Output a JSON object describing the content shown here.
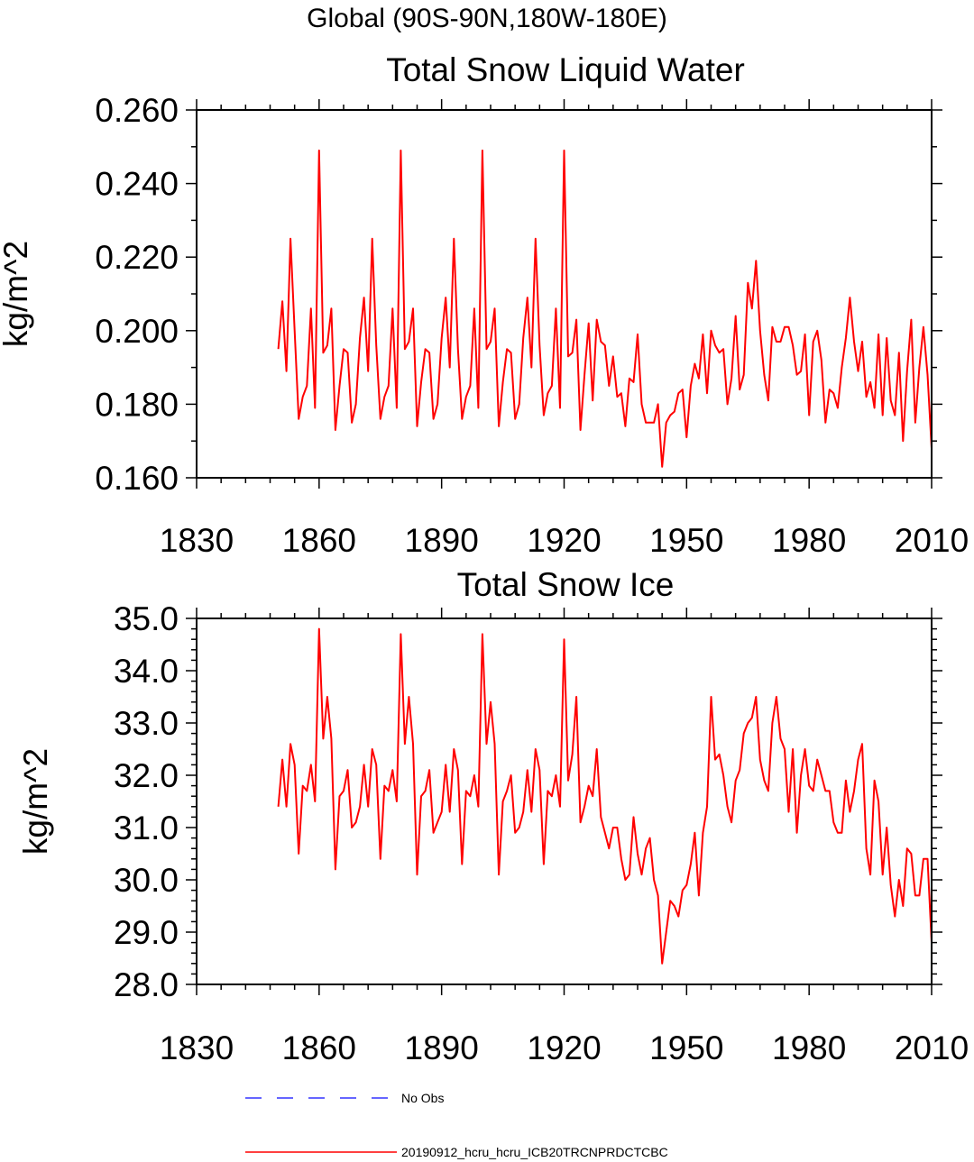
{
  "figure_title": "Global (90S-90N,180W-180E)",
  "legend": [
    {
      "label": "No Obs",
      "color": "#3333ff",
      "style": "dashed"
    },
    {
      "label": "20190912_hcru_hcru_ICB20TRCNPRDCTCBC",
      "color": "#ff0000",
      "style": "solid"
    }
  ],
  "chart_data": [
    {
      "type": "line",
      "title": "Total Snow Liquid Water",
      "xlabel": "",
      "ylabel": "kg/m^2",
      "xlim": [
        1830,
        2010
      ],
      "ylim": [
        0.16,
        0.26
      ],
      "xticks": [
        "1830",
        "1860",
        "1890",
        "1920",
        "1950",
        "1980",
        "2010"
      ],
      "yticks": [
        "0.160",
        "0.180",
        "0.200",
        "0.220",
        "0.240",
        "0.260"
      ],
      "series": [
        {
          "name": "20190912_hcru_hcru_ICB20TRCNPRDCTCBC",
          "color": "#ff0000",
          "x_start": 1850,
          "values": [
            0.195,
            0.208,
            0.189,
            0.225,
            0.2,
            0.176,
            0.182,
            0.185,
            0.206,
            0.179,
            0.249,
            0.194,
            0.196,
            0.206,
            0.173,
            0.185,
            0.195,
            0.194,
            0.175,
            0.18,
            0.198,
            0.209,
            0.189,
            0.225,
            0.196,
            0.176,
            0.182,
            0.185,
            0.206,
            0.179,
            0.249,
            0.195,
            0.197,
            0.206,
            0.174,
            0.186,
            0.195,
            0.194,
            0.176,
            0.18,
            0.198,
            0.209,
            0.19,
            0.225,
            0.195,
            0.176,
            0.182,
            0.185,
            0.206,
            0.179,
            0.249,
            0.195,
            0.197,
            0.206,
            0.174,
            0.186,
            0.195,
            0.194,
            0.176,
            0.18,
            0.198,
            0.209,
            0.19,
            0.225,
            0.196,
            0.177,
            0.183,
            0.185,
            0.206,
            0.179,
            0.249,
            0.193,
            0.194,
            0.203,
            0.173,
            0.188,
            0.202,
            0.181,
            0.203,
            0.197,
            0.196,
            0.185,
            0.193,
            0.182,
            0.183,
            0.174,
            0.187,
            0.186,
            0.199,
            0.18,
            0.175,
            0.175,
            0.175,
            0.18,
            0.163,
            0.175,
            0.177,
            0.178,
            0.183,
            0.184,
            0.171,
            0.185,
            0.191,
            0.187,
            0.199,
            0.183,
            0.2,
            0.196,
            0.194,
            0.195,
            0.18,
            0.187,
            0.204,
            0.184,
            0.188,
            0.213,
            0.206,
            0.219,
            0.2,
            0.188,
            0.181,
            0.201,
            0.197,
            0.197,
            0.201,
            0.201,
            0.196,
            0.188,
            0.189,
            0.199,
            0.177,
            0.197,
            0.2,
            0.192,
            0.175,
            0.184,
            0.183,
            0.179,
            0.19,
            0.198,
            0.209,
            0.197,
            0.189,
            0.197,
            0.182,
            0.186,
            0.179,
            0.199,
            0.177,
            0.198,
            0.181,
            0.177,
            0.194,
            0.17,
            0.189,
            0.203,
            0.175,
            0.19,
            0.201,
            0.188,
            0.168
          ]
        }
      ]
    },
    {
      "type": "line",
      "title": "Total Snow Ice",
      "xlabel": "",
      "ylabel": "kg/m^2",
      "xlim": [
        1830,
        2010
      ],
      "ylim": [
        28.0,
        35.0
      ],
      "xticks": [
        "1830",
        "1860",
        "1890",
        "1920",
        "1950",
        "1980",
        "2010"
      ],
      "yticks": [
        "28.0",
        "29.0",
        "30.0",
        "31.0",
        "32.0",
        "33.0",
        "34.0",
        "35.0"
      ],
      "series": [
        {
          "name": "20190912_hcru_hcru_ICB20TRCNPRDCTCBC",
          "color": "#ff0000",
          "x_start": 1850,
          "values": [
            31.4,
            32.3,
            31.4,
            32.6,
            32.2,
            30.5,
            31.8,
            31.7,
            32.2,
            31.5,
            34.8,
            32.7,
            33.5,
            32.7,
            30.2,
            31.6,
            31.7,
            32.1,
            31.0,
            31.1,
            31.4,
            32.2,
            31.4,
            32.5,
            32.2,
            30.4,
            31.8,
            31.7,
            32.1,
            31.5,
            34.7,
            32.6,
            33.5,
            32.6,
            30.1,
            31.6,
            31.7,
            32.1,
            30.9,
            31.1,
            31.3,
            32.2,
            31.3,
            32.5,
            32.1,
            30.3,
            31.7,
            31.6,
            32.0,
            31.4,
            34.7,
            32.6,
            33.4,
            32.6,
            30.1,
            31.5,
            31.7,
            32.0,
            30.9,
            31.0,
            31.3,
            32.1,
            31.3,
            32.5,
            32.1,
            30.3,
            31.7,
            31.6,
            32.0,
            31.4,
            34.6,
            31.9,
            32.4,
            33.5,
            31.1,
            31.4,
            31.8,
            31.6,
            32.5,
            31.2,
            30.9,
            30.6,
            31.0,
            31.0,
            30.4,
            30.0,
            30.1,
            31.2,
            30.5,
            30.1,
            30.6,
            30.8,
            30.0,
            29.7,
            28.4,
            29.0,
            29.6,
            29.5,
            29.3,
            29.8,
            29.9,
            30.3,
            30.9,
            29.7,
            30.9,
            31.4,
            33.5,
            32.3,
            32.4,
            32.0,
            31.4,
            31.1,
            31.9,
            32.1,
            32.8,
            33.0,
            33.1,
            33.5,
            32.3,
            31.9,
            31.7,
            33.0,
            33.5,
            32.7,
            32.5,
            31.3,
            32.5,
            30.9,
            32.0,
            32.5,
            31.8,
            31.7,
            32.3,
            32.0,
            31.7,
            31.7,
            31.1,
            30.9,
            30.9,
            31.9,
            31.3,
            31.7,
            32.3,
            32.6,
            30.6,
            30.1,
            31.9,
            31.5,
            30.1,
            31.0,
            29.9,
            29.3,
            30.0,
            29.5,
            30.6,
            30.5,
            29.7,
            29.7,
            30.4,
            30.4,
            28.8
          ]
        }
      ]
    }
  ]
}
